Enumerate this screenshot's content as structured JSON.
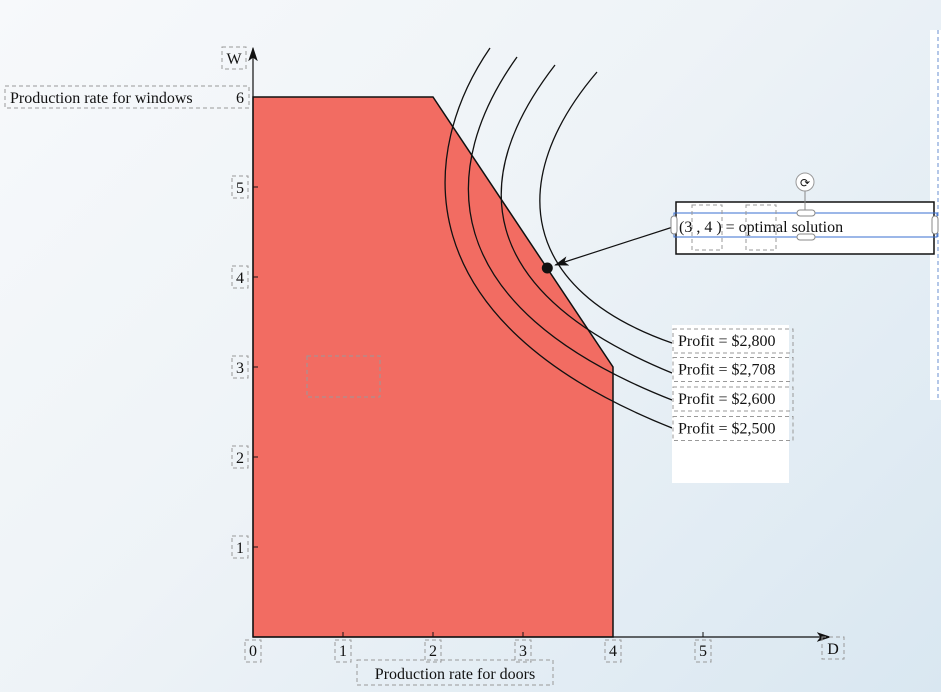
{
  "chart_data": {
    "type": "area",
    "title": "",
    "xlabel": "Production rate for doors",
    "ylabel": "Production rate for windows",
    "x_axis_letter": "D",
    "y_axis_letter": "W",
    "xlim": [
      0,
      6.5
    ],
    "ylim": [
      0,
      6.5
    ],
    "x_ticks": [
      "0",
      "1",
      "2",
      "3",
      "4",
      "5"
    ],
    "y_ticks": [
      "1",
      "2",
      "3",
      "4",
      "5",
      "6"
    ],
    "feasible_region": {
      "vertices": [
        [
          0,
          0
        ],
        [
          0,
          6
        ],
        [
          2,
          6
        ],
        [
          4,
          3
        ],
        [
          4,
          0
        ]
      ],
      "color": "#f26c62"
    },
    "optimal_point": {
      "x": 3.27,
      "y": 4.1,
      "label": "(3 , 4 ) = optimal solution"
    },
    "isoprofit_lines": [
      {
        "label": "Profit = $2,800",
        "value": 2800
      },
      {
        "label": "Profit = $2,708",
        "value": 2708
      },
      {
        "label": "Profit = $2,600",
        "value": 2600
      },
      {
        "label": "Profit = $2,500",
        "value": 2500
      }
    ]
  }
}
